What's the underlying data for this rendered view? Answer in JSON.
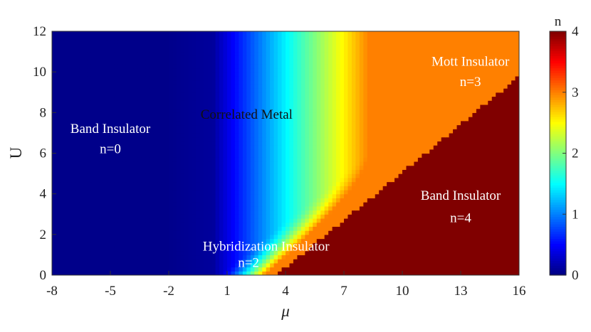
{
  "chart_data": {
    "type": "heatmap",
    "xlabel": "μ",
    "ylabel": "U",
    "xlim": [
      -8,
      16
    ],
    "ylim": [
      0,
      12
    ],
    "x_ticks": [
      "-8",
      "-5",
      "-2",
      "1",
      "4",
      "7",
      "10",
      "13",
      "16"
    ],
    "y_ticks": [
      "0",
      "2",
      "4",
      "6",
      "8",
      "10",
      "12"
    ],
    "colorbar": {
      "label": "n",
      "range": [
        0,
        4
      ],
      "ticks": [
        "0",
        "1",
        "2",
        "3",
        "4"
      ],
      "colormap": "jet"
    },
    "grid": false,
    "phase_boundaries": {
      "band_insulator_edge_mu": 0.5,
      "mott_band_boundary": [
        {
          "mu": 3.5,
          "U": 0.0
        },
        {
          "mu": 8.0,
          "U": 3.5
        },
        {
          "mu": 16.0,
          "U": 9.8
        }
      ]
    },
    "annotations": [
      {
        "text": "Band Insulator",
        "mu": -5.0,
        "U": 7.0,
        "color": "#ffffff"
      },
      {
        "text": "n=0",
        "mu": -5.0,
        "U": 6.0,
        "color": "#ffffff"
      },
      {
        "text": "Correlated Metal",
        "mu": 2.0,
        "U": 7.7,
        "color": "#111111"
      },
      {
        "text": "Mott Insulator",
        "mu": 13.5,
        "U": 10.3,
        "color": "#ffffff"
      },
      {
        "text": "n=3",
        "mu": 13.5,
        "U": 9.3,
        "color": "#ffffff"
      },
      {
        "text": "Band Insulator",
        "mu": 13.0,
        "U": 3.7,
        "color": "#ffffff"
      },
      {
        "text": "n=4",
        "mu": 13.0,
        "U": 2.6,
        "color": "#ffffff"
      },
      {
        "text": "Hybridization Insulator",
        "mu": 3.0,
        "U": 1.2,
        "color": "#ffffff"
      },
      {
        "text": "n=2",
        "mu": 2.1,
        "U": 0.4,
        "color": "#ffffff"
      }
    ]
  }
}
